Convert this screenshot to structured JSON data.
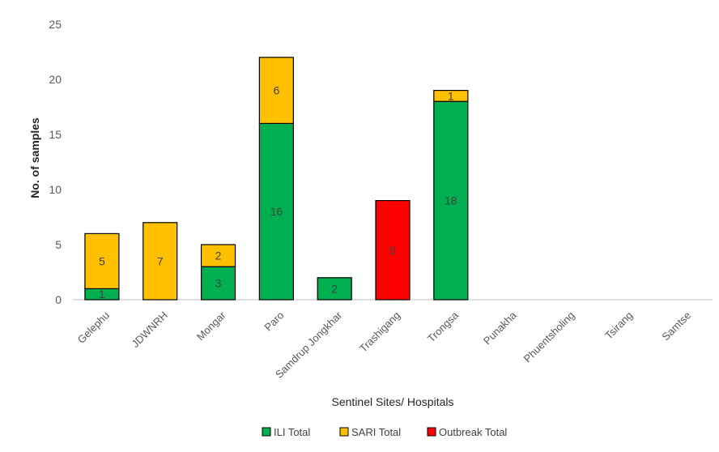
{
  "chart_data": {
    "type": "bar",
    "stacked": true,
    "categories": [
      "Gelephu",
      "JDWNRH",
      "Mongar",
      "Paro",
      "Samdrup Jongkhar",
      "Trashigang",
      "Trongsa",
      "Punakha",
      "Phuentsholing",
      "Tsirang",
      "Samtse"
    ],
    "series": [
      {
        "name": "ILI Total",
        "color": "#00B050",
        "values": [
          1,
          0,
          3,
          16,
          2,
          0,
          18,
          0,
          0,
          0,
          0
        ]
      },
      {
        "name": "SARI Total",
        "color": "#FFC000",
        "values": [
          5,
          7,
          2,
          6,
          0,
          0,
          1,
          0,
          0,
          0,
          0
        ]
      },
      {
        "name": "Outbreak Total",
        "color": "#FF0000",
        "values": [
          0,
          0,
          0,
          0,
          0,
          9,
          0,
          0,
          0,
          0,
          0
        ]
      }
    ],
    "xlabel": "Sentinel Sites/ Hospitals",
    "ylabel": "No. of samples",
    "ylim": [
      0,
      25
    ],
    "yticks": [
      0,
      5,
      10,
      15,
      20,
      25
    ],
    "grid": false,
    "legend": "bottom"
  }
}
